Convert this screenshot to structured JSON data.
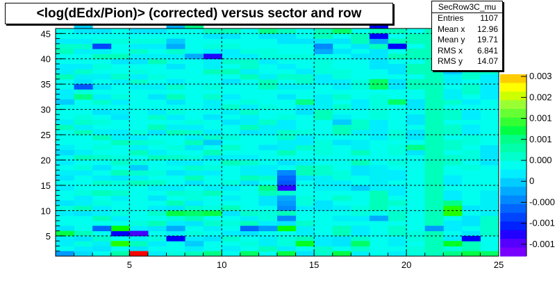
{
  "title": "<log(dEdx/Pion)> (corrected) versus sector and row",
  "stats": {
    "name": "SecRow3C_mu",
    "rows": [
      {
        "label": "Entries",
        "value": "1107"
      },
      {
        "label": "Mean x",
        "value": "12.96"
      },
      {
        "label": "Mean y",
        "value": "19.71"
      },
      {
        "label": "RMS x",
        "value": "6.841"
      },
      {
        "label": "RMS y",
        "value": "14.07"
      }
    ]
  },
  "chart_data": {
    "type": "heatmap",
    "title": "<log(dEdx/Pion)> (corrected) versus sector and row",
    "xlabel": "",
    "ylabel": "",
    "xlim": [
      1,
      25
    ],
    "ylim": [
      1,
      46
    ],
    "x_ticks": [
      5,
      10,
      15,
      20,
      25
    ],
    "y_ticks": [
      5,
      10,
      15,
      20,
      25,
      30,
      35,
      40,
      45
    ],
    "grid": true,
    "palette_ticks": [
      "0.003",
      "0.002",
      "0.001",
      "0.001",
      "0.000",
      "0",
      "-0.000",
      "-0.001",
      "-0.001"
    ],
    "palette_colors": [
      "#ffcc00",
      "#ffff00",
      "#ccff00",
      "#99ff33",
      "#66ff33",
      "#33ff33",
      "#00ff44",
      "#00ff88",
      "#00ffaa",
      "#00ffcc",
      "#00ffee",
      "#00eeff",
      "#00ccff",
      "#00aaff",
      "#0088ff",
      "#0066ff",
      "#0044ff",
      "#0022ff",
      "#2200ff",
      "#5500ff",
      "#7700ff"
    ],
    "background_color": "#00ffee",
    "cells": [
      {
        "x": 5,
        "y": 1,
        "color": "#ff0000"
      },
      {
        "x": 1,
        "y": 1,
        "color": "#0099ff"
      },
      {
        "x": 2,
        "y": 1,
        "color": "#00ddff"
      },
      {
        "x": 4,
        "y": 1,
        "color": "#00ffaa"
      },
      {
        "x": 9,
        "y": 1,
        "color": "#00ff88"
      },
      {
        "x": 11,
        "y": 1,
        "color": "#00ff66"
      },
      {
        "x": 13,
        "y": 1,
        "color": "#00ff44"
      },
      {
        "x": 16,
        "y": 1,
        "color": "#00ff44"
      },
      {
        "x": 22,
        "y": 1,
        "color": "#00ff88"
      },
      {
        "x": 23,
        "y": 1,
        "color": "#00ff44"
      },
      {
        "x": 24,
        "y": 1,
        "color": "#00ff66"
      },
      {
        "x": 4,
        "y": 3,
        "color": "#22ff00"
      },
      {
        "x": 8,
        "y": 3,
        "color": "#00ccff"
      },
      {
        "x": 14,
        "y": 3,
        "color": "#00ff22"
      },
      {
        "x": 17,
        "y": 3,
        "color": "#00ff66"
      },
      {
        "x": 7,
        "y": 4,
        "color": "#0000ff"
      },
      {
        "x": 23,
        "y": 4,
        "color": "#0000ff"
      },
      {
        "x": 22,
        "y": 3,
        "color": "#00ff22"
      },
      {
        "x": 4,
        "y": 5,
        "color": "#0000ff"
      },
      {
        "x": 5,
        "y": 5,
        "color": "#4400ff"
      },
      {
        "x": 4,
        "y": 6,
        "color": "#00ff00"
      },
      {
        "x": 3,
        "y": 6,
        "color": "#0066ff"
      },
      {
        "x": 1,
        "y": 5,
        "color": "#00ff44"
      },
      {
        "x": 13,
        "y": 6,
        "color": "#00ff00"
      },
      {
        "x": 11,
        "y": 6,
        "color": "#0066ff"
      },
      {
        "x": 12,
        "y": 6,
        "color": "#0099ff"
      },
      {
        "x": 7,
        "y": 6,
        "color": "#00aaff"
      },
      {
        "x": 21,
        "y": 6,
        "color": "#0099ff"
      },
      {
        "x": 18,
        "y": 8,
        "color": "#00aaff"
      },
      {
        "x": 13,
        "y": 8,
        "color": "#0088ff"
      },
      {
        "x": 7,
        "y": 9,
        "color": "#00ff44"
      },
      {
        "x": 8,
        "y": 9,
        "color": "#00ff66"
      },
      {
        "x": 9,
        "y": 9,
        "color": "#00ff44"
      },
      {
        "x": 22,
        "y": 9,
        "color": "#22ff00"
      },
      {
        "x": 22,
        "y": 10,
        "color": "#22ff00"
      },
      {
        "x": 22,
        "y": 11,
        "color": "#00ff88"
      },
      {
        "x": 13,
        "y": 10,
        "color": "#0088ff"
      },
      {
        "x": 13,
        "y": 11,
        "color": "#0099ff"
      },
      {
        "x": 13,
        "y": 12,
        "color": "#00aaff"
      },
      {
        "x": 13,
        "y": 14,
        "color": "#3300ff"
      },
      {
        "x": 13,
        "y": 15,
        "color": "#0055ff"
      },
      {
        "x": 13,
        "y": 16,
        "color": "#0066ff"
      },
      {
        "x": 13,
        "y": 17,
        "color": "#0088ff"
      },
      {
        "x": 17,
        "y": 14,
        "color": "#00ccff"
      },
      {
        "x": 12,
        "y": 14,
        "color": "#00ff88"
      },
      {
        "x": 1,
        "y": 21,
        "color": "#00ddff"
      },
      {
        "x": 5,
        "y": 18,
        "color": "#00ccff"
      },
      {
        "x": 20,
        "y": 22,
        "color": "#00ff88"
      },
      {
        "x": 9,
        "y": 23,
        "color": "#00ccff"
      },
      {
        "x": 16,
        "y": 27,
        "color": "#00ccff"
      },
      {
        "x": 1,
        "y": 31,
        "color": "#00ccff"
      },
      {
        "x": 2,
        "y": 32,
        "color": "#00ff88"
      },
      {
        "x": 14,
        "y": 31,
        "color": "#00ff88"
      },
      {
        "x": 19,
        "y": 31,
        "color": "#00ff66"
      },
      {
        "x": 2,
        "y": 34,
        "color": "#0055ff"
      },
      {
        "x": 18,
        "y": 35,
        "color": "#00ff66"
      },
      {
        "x": 18,
        "y": 34,
        "color": "#00ff66"
      },
      {
        "x": 22,
        "y": 37,
        "color": "#00ccff"
      },
      {
        "x": 9,
        "y": 40,
        "color": "#2200ff"
      },
      {
        "x": 8,
        "y": 40,
        "color": "#00aaff"
      },
      {
        "x": 15,
        "y": 41,
        "color": "#00aaff"
      },
      {
        "x": 15,
        "y": 42,
        "color": "#0088ff"
      },
      {
        "x": 3,
        "y": 42,
        "color": "#0044ff"
      },
      {
        "x": 7,
        "y": 42,
        "color": "#00aaff"
      },
      {
        "x": 7,
        "y": 43,
        "color": "#00ccff"
      },
      {
        "x": 19,
        "y": 42,
        "color": "#0000ff"
      },
      {
        "x": 18,
        "y": 43,
        "color": "#00aaff"
      },
      {
        "x": 18,
        "y": 44,
        "color": "#0000ff"
      },
      {
        "x": 18,
        "y": 46,
        "color": "#0000ff"
      },
      {
        "x": 7,
        "y": 46,
        "color": "#00aaff"
      },
      {
        "x": 2,
        "y": 46,
        "color": "#00ccff"
      },
      {
        "x": 8,
        "y": 46,
        "color": "#00ff88"
      },
      {
        "x": 16,
        "y": 45,
        "color": "#00ff66"
      },
      {
        "x": 12,
        "y": 45,
        "color": "#00ff88"
      },
      {
        "x": 22,
        "y": 44,
        "color": "#0099ff"
      },
      {
        "x": 23,
        "y": 45,
        "color": "#00ccff"
      }
    ]
  }
}
